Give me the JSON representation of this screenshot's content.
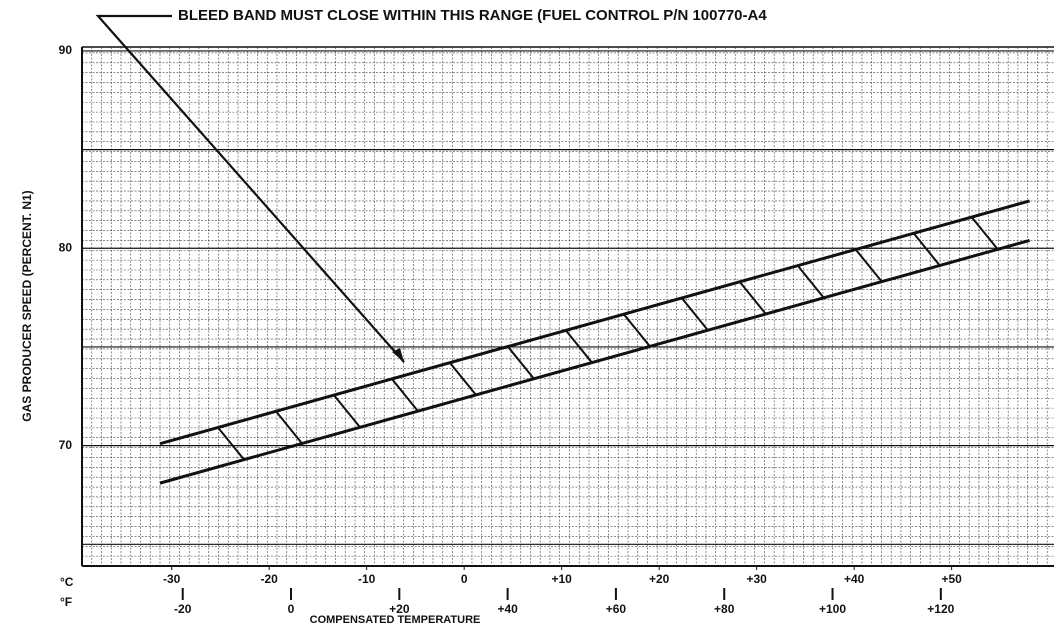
{
  "chart_data": {
    "type": "line",
    "annotation": "BLEED BAND MUST CLOSE WITHIN THIS RANGE (FUEL CONTROL P/N 100770-A4",
    "ylabel": "GAS PRODUCER SPEED (PERCENT. N1)",
    "xlabel": "COMPENSATED TEMPERATURE",
    "xunit": "°C",
    "x2unit": "°F",
    "x": [
      -31.2,
      58
    ],
    "series": [
      {
        "color": "#111111",
        "values": [
          70.1,
          82.4
        ]
      },
      {
        "color": "#111111",
        "values": [
          68.1,
          80.4
        ]
      }
    ],
    "xlim": [
      -39.2,
      60.5
    ],
    "xticks": [
      -30,
      -20,
      -10,
      0,
      {
        "value": 10,
        "label": "+10"
      },
      {
        "value": 20,
        "label": "+20"
      },
      {
        "value": 30,
        "label": "+30"
      },
      {
        "value": 40,
        "label": "+40"
      },
      {
        "value": 50,
        "label": "+50"
      }
    ],
    "x2lim": [
      -38.6,
      140.9
    ],
    "x2ticks": [
      -20,
      0,
      {
        "value": 20,
        "label": "+20"
      },
      {
        "value": 40,
        "label": "+40"
      },
      {
        "value": 60,
        "label": "+60"
      },
      {
        "value": 80,
        "label": "+80"
      },
      {
        "value": 100,
        "label": "+100"
      },
      {
        "value": 120,
        "label": "+120"
      }
    ],
    "ylim": [
      63.9,
      90.2
    ],
    "yticks": [
      70,
      80,
      90
    ],
    "grid": true
  }
}
